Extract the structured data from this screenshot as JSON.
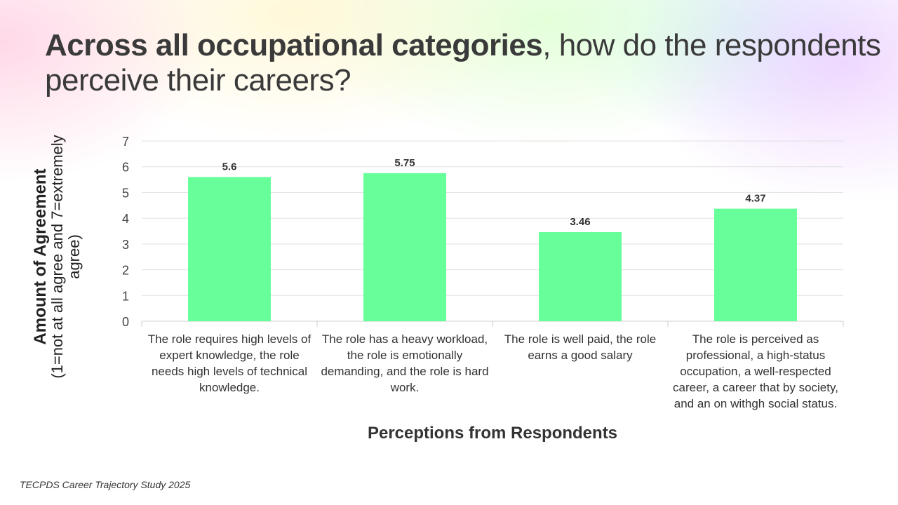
{
  "title": {
    "bold": "Across all occupational categories",
    "rest": ", how do the respondents perceive their careers?"
  },
  "source": "TECPDS Career Trajectory Study 2025",
  "chart_data": {
    "type": "bar",
    "categories": [
      "The role requires high levels of expert knowledge, the role needs high levels of technical knowledge.",
      "The role has a heavy workload, the role is emotionally demanding, and the role is hard work.",
      "The role is well paid, the role earns a good salary",
      "The role is perceived as professional, a high-status occupation, a well-respected career, a career that by society, and an on withgh social status."
    ],
    "values": [
      5.6,
      5.75,
      3.46,
      4.37
    ],
    "data_labels": [
      "5.6",
      "5.75",
      "3.46",
      "4.37"
    ],
    "xlabel": "Perceptions from Respondents",
    "ylabel_main": "Amount of Agreement",
    "ylabel_sub": "(1=not at all agree and 7=extremely agree)",
    "ylim": [
      0,
      7
    ],
    "yticks": [
      "0",
      "1",
      "2",
      "3",
      "4",
      "5",
      "6",
      "7"
    ],
    "grid": true,
    "bar_color": "#66ff99"
  }
}
